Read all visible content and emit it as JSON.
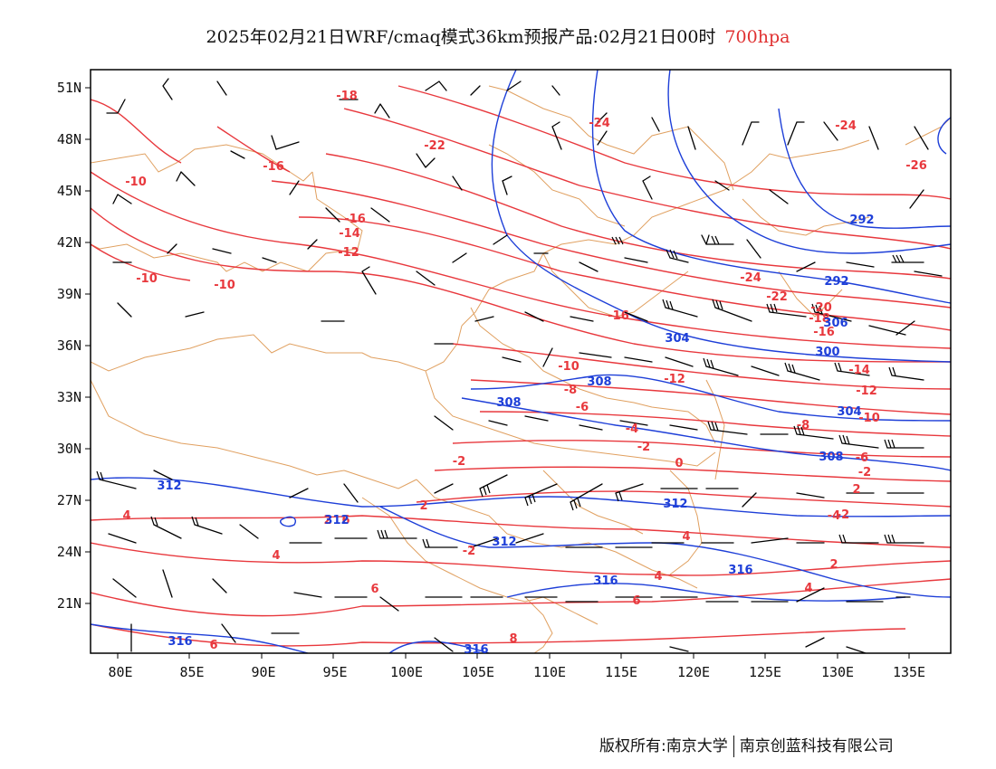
{
  "title": {
    "main": "2025年02月21日WRF/cmaq模式36km预报产品:02月21日00时",
    "level": "700hpa"
  },
  "axes": {
    "lon_labels": [
      "80E",
      "85E",
      "90E",
      "95E",
      "100E",
      "105E",
      "110E",
      "115E",
      "120E",
      "125E",
      "130E",
      "135E"
    ],
    "lat_labels": [
      "21N",
      "24N",
      "27N",
      "30N",
      "33N",
      "36N",
      "39N",
      "42N",
      "45N",
      "48N",
      "51N"
    ]
  },
  "contour_labels": {
    "temperature": [
      "-18",
      "-22",
      "-24",
      "-24",
      "-26",
      "-16",
      "-10",
      "-16",
      "-14",
      "-12",
      "-10",
      "-10",
      "-24",
      "-22",
      "-20",
      "-18",
      "-16",
      "-16",
      "-14",
      "-12",
      "-10",
      "-10",
      "-12",
      "-8",
      "-8",
      "-6",
      "-6",
      "-4",
      "-2",
      "-2",
      "0",
      "-2",
      "2",
      "-4",
      "-2",
      "2",
      "4",
      "2",
      "4",
      "4",
      "-2",
      "2",
      "4",
      "6",
      "6",
      "4",
      "6",
      "8",
      "6"
    ],
    "geopotential": [
      "292",
      "292",
      "300",
      "304",
      "306",
      "308",
      "308",
      "308",
      "312",
      "312",
      "312",
      "312",
      "316",
      "316",
      "316",
      "316",
      "304"
    ]
  },
  "colors": {
    "temperature": "#e8383d",
    "geopotential": "#1e3fd8",
    "border": "#e0a060",
    "wind": "#000000"
  },
  "footer": {
    "left": "版权所有:南京大学",
    "right": "南京创蓝科技有限公司"
  }
}
